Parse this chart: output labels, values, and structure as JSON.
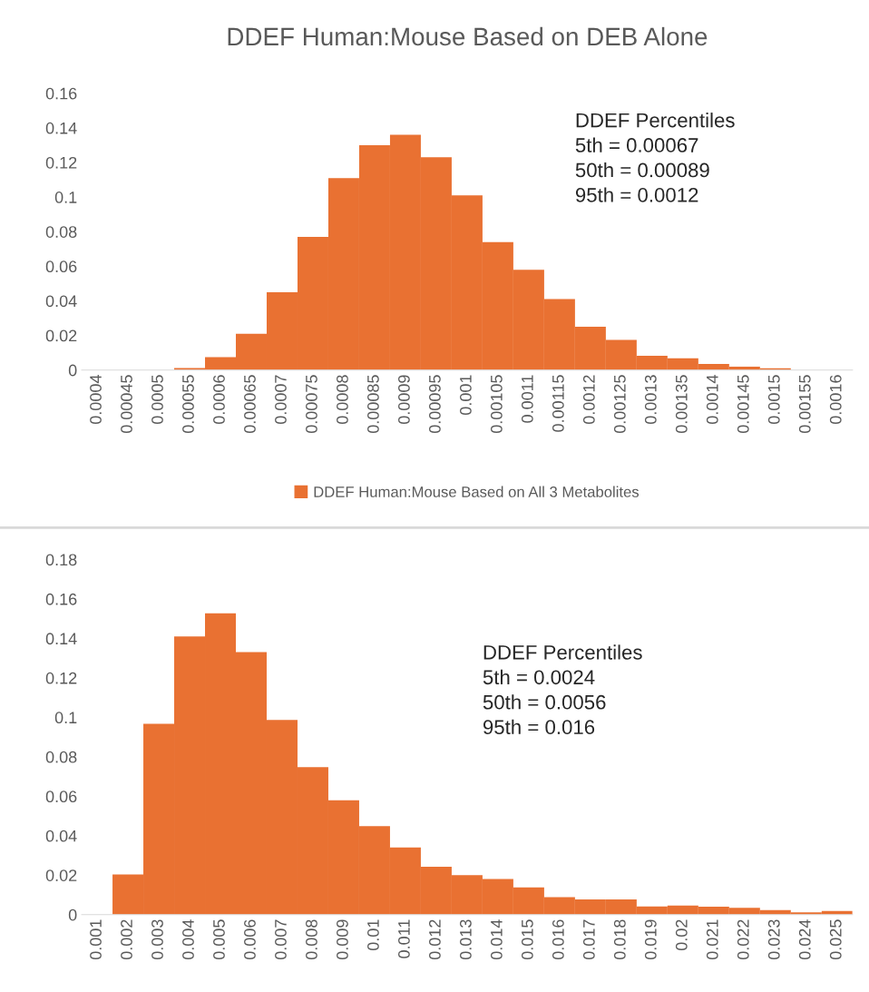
{
  "chart_data": [
    {
      "type": "bar",
      "title": "DDEF Human:Mouse Based on DEB Alone",
      "categories": [
        "0.0004",
        "0.00045",
        "0.0005",
        "0.00055",
        "0.0006",
        "0.00065",
        "0.0007",
        "0.00075",
        "0.0008",
        "0.00085",
        "0.0009",
        "0.00095",
        "0.001",
        "0.00105",
        "0.0011",
        "0.00115",
        "0.0012",
        "0.00125",
        "0.0013",
        "0.00135",
        "0.0014",
        "0.00145",
        "0.0015",
        "0.00155",
        "0.0016"
      ],
      "series": [
        {
          "name": "DDEF Human:Mouse Based on All 3 Metabolites",
          "color": "#e97132",
          "values": [
            0,
            0,
            null,
            0.0012,
            0.0075,
            0.021,
            0.045,
            0.077,
            0.111,
            0.13,
            0.136,
            0.123,
            0.101,
            0.074,
            0.058,
            0.041,
            0.025,
            0.0174,
            0.0082,
            0.0068,
            0.0035,
            0.002,
            0.001,
            null,
            null
          ]
        }
      ],
      "ylim": [
        0,
        0.16
      ],
      "yticks": [
        0,
        0.02,
        0.04,
        0.06,
        0.08,
        0.1,
        0.12,
        0.14,
        0.16
      ],
      "legend": "bottom",
      "grid": false,
      "annotations": [
        "DDEF Percentiles",
        "5th = 0.00067",
        "50th = 0.00089",
        "95th = 0.0012"
      ]
    },
    {
      "type": "bar",
      "categories": [
        "0.001",
        "0.002",
        "0.003",
        "0.004",
        "0.005",
        "0.006",
        "0.007",
        "0.008",
        "0.009",
        "0.01",
        "0.011",
        "0.012",
        "0.013",
        "0.014",
        "0.015",
        "0.016",
        "0.017",
        "0.018",
        "0.019",
        "0.02",
        "0.021",
        "0.022",
        "0.023",
        "0.024",
        "0.025"
      ],
      "series": [
        {
          "color": "#e97132",
          "values": [
            0,
            0.0203,
            0.0967,
            0.141,
            0.1527,
            0.133,
            0.0987,
            0.0747,
            0.058,
            0.0448,
            0.034,
            0.0243,
            0.02,
            0.018,
            0.0138,
            0.0089,
            0.0077,
            0.0077,
            0.0041,
            0.0046,
            0.004,
            0.0034,
            0.0023,
            0.0011,
            0.0018
          ]
        }
      ],
      "ylim": [
        0,
        0.18
      ],
      "yticks": [
        0,
        0.02,
        0.04,
        0.06,
        0.08,
        0.1,
        0.12,
        0.14,
        0.16,
        0.18
      ],
      "grid": false,
      "annotations": [
        "DDEF Percentiles",
        "5th = 0.0024",
        "50th = 0.0056",
        "95th = 0.016"
      ]
    }
  ]
}
